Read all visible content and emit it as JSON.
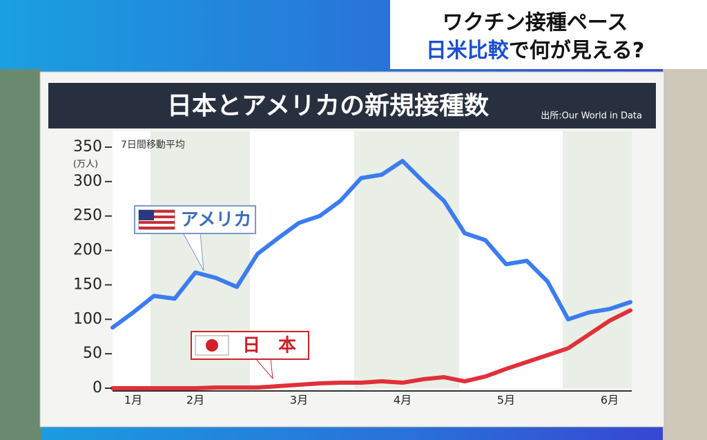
{
  "header": {
    "title": "ワクチン接種ペース",
    "subtitle_highlight": "日米比較",
    "subtitle_rest": "で何が見える?"
  },
  "chart_data": {
    "type": "line",
    "title": "日本とアメリカの新規接種数",
    "source": "出所:Our World in Data",
    "note": "7日間移動平均",
    "y_unit": "(万人)",
    "categories": [
      null,
      "1月",
      null,
      null,
      "2月",
      null,
      null,
      null,
      null,
      "3月",
      null,
      null,
      null,
      null,
      "4月",
      null,
      null,
      null,
      null,
      "5月",
      null,
      null,
      null,
      null,
      "6月",
      null
    ],
    "series": [
      {
        "name": "アメリカ",
        "color": "#3b7cf0",
        "label_color": "#3a6fc0",
        "values": [
          88,
          110,
          134,
          130,
          168,
          160,
          147,
          195,
          218,
          240,
          250,
          272,
          305,
          310,
          330,
          300,
          272,
          225,
          215,
          180,
          185,
          155,
          100,
          110,
          115,
          125
        ]
      },
      {
        "name": "日　本",
        "color": "#e0303a",
        "label_color": "#d0202a",
        "values": [
          0,
          0,
          0,
          0,
          0,
          1,
          1,
          1,
          3,
          5,
          7,
          8,
          8,
          10,
          8,
          13,
          16,
          10,
          17,
          28,
          38,
          48,
          58,
          78,
          98,
          113
        ]
      }
    ],
    "ylim": [
      0,
      350
    ],
    "yticks": [
      0,
      50,
      100,
      150,
      200,
      250,
      300,
      350
    ],
    "grid": false
  }
}
